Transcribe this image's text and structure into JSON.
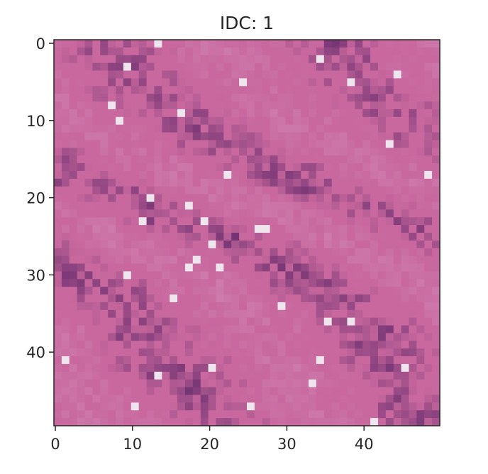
{
  "chart_data": {
    "type": "heatmap",
    "title": "IDC: 1",
    "xlabel": "",
    "ylabel": "",
    "grid": false,
    "x_range": [
      0,
      50
    ],
    "y_range": [
      0,
      50
    ],
    "y_axis_inverted": true,
    "x_ticks": [
      0,
      10,
      20,
      30,
      40
    ],
    "y_ticks": [
      0,
      10,
      20,
      30,
      40
    ],
    "grid_size": 50,
    "colors": {
      "background_pink": "#c8689e",
      "dark_purple": "#6a2e6e",
      "light_lavender": "#e0b4d8",
      "axis": "#262626"
    }
  }
}
